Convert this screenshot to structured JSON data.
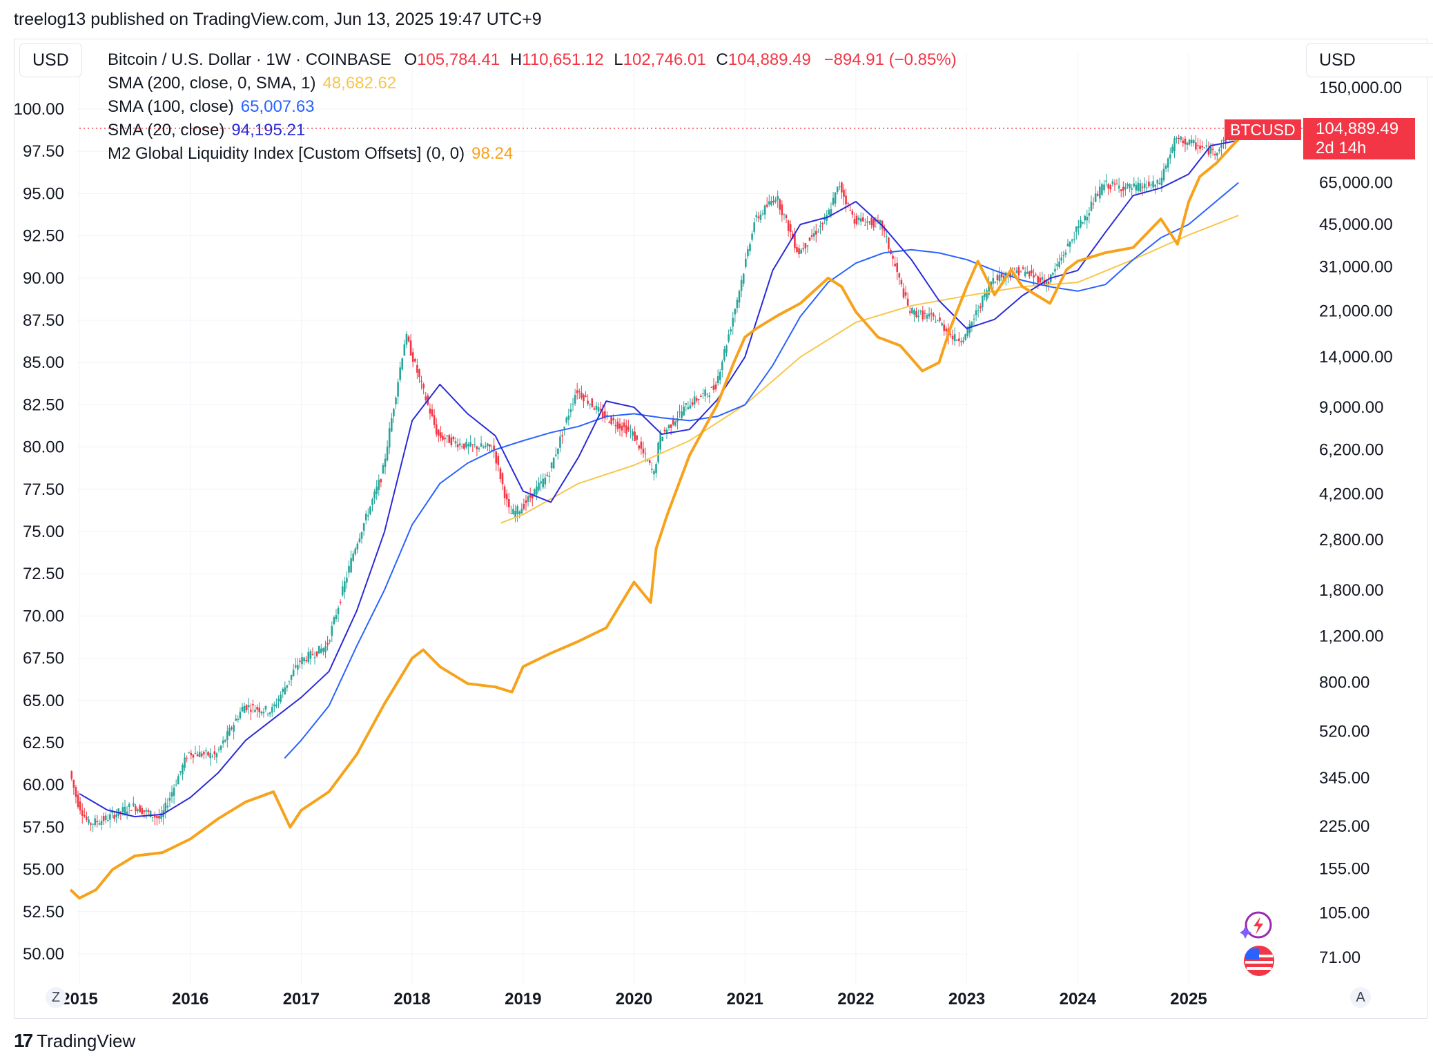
{
  "header": {
    "published": "treelog13 published on TradingView.com, Jun 13, 2025 19:47 UTC+9"
  },
  "left_currency": "USD",
  "right_currency": "USD",
  "legend": {
    "symbol": "Bitcoin / U.S. Dollar · 1W · COINBASE",
    "o_label": "O",
    "o_value": "105,784.41",
    "h_label": "H",
    "h_value": "110,651.12",
    "l_label": "L",
    "l_value": "102,746.01",
    "c_label": "C",
    "c_value": "104,889.49",
    "change": "−894.91 (−0.85%)",
    "sma200_label": "SMA (200, close, 0, SMA, 1)",
    "sma200_value": "48,682.62",
    "sma100_label": "SMA (100, close)",
    "sma100_value": "65,007.63",
    "sma20_label": "SMA (20, close)",
    "sma20_value": "94,195.21",
    "m2_label": "M2 Global Liquidity Index [Custom Offsets] (0, 0)",
    "m2_value": "98.24"
  },
  "price_tag": {
    "symbol": "BTCUSD",
    "price": "104,889.49",
    "countdown": "2d 14h"
  },
  "corner_left": "Z",
  "corner_right": "A",
  "footer_logo": "TradingView",
  "colors": {
    "up": "#26a69a",
    "down": "#f23645",
    "m2": "#f7a21b",
    "sma200": "#f8c64a",
    "sma100": "#2962ff",
    "sma20": "#2a2ad9",
    "grid": "#f0f3fa"
  },
  "chart_data": {
    "type": "line",
    "title": "Bitcoin / U.S. Dollar · 1W · COINBASE",
    "left_axis": {
      "label": "USD",
      "ticks": [
        "50.00",
        "52.50",
        "55.00",
        "57.50",
        "60.00",
        "62.50",
        "65.00",
        "67.50",
        "70.00",
        "72.50",
        "75.00",
        "77.50",
        "80.00",
        "82.50",
        "85.00",
        "87.50",
        "90.00",
        "92.50",
        "95.00",
        "97.50",
        "100.00"
      ],
      "range": [
        49,
        101
      ]
    },
    "right_axis": {
      "label": "USD",
      "log_scale": true,
      "ticks": [
        "71.00",
        "105.00",
        "155.00",
        "225.00",
        "345.00",
        "520.00",
        "800.00",
        "1,200.00",
        "1,800.00",
        "2,800.00",
        "4,200.00",
        "6,200.00",
        "9,000.00",
        "14,000.00",
        "21,000.00",
        "31,000.00",
        "45,000.00",
        "65,000.00",
        "150,000.00"
      ]
    },
    "x_ticks": [
      "2015",
      "2016",
      "2017",
      "2018",
      "2019",
      "2020",
      "2021",
      "2022",
      "2023",
      "2024",
      "2025"
    ],
    "grid": true,
    "series": [
      {
        "name": "Bitcoin / U.S. Dollar",
        "axis": "right",
        "x": [
          2014.92,
          2015.0,
          2015.1,
          2015.25,
          2015.5,
          2015.75,
          2016.0,
          2016.25,
          2016.5,
          2016.75,
          2017.0,
          2017.25,
          2017.5,
          2017.75,
          2017.96,
          2018.1,
          2018.25,
          2018.5,
          2018.75,
          2018.9,
          2019.0,
          2019.25,
          2019.5,
          2019.75,
          2020.0,
          2020.2,
          2020.25,
          2020.5,
          2020.75,
          2020.9,
          2021.0,
          2021.1,
          2021.3,
          2021.5,
          2021.75,
          2021.87,
          2022.0,
          2022.25,
          2022.5,
          2022.75,
          2022.9,
          2023.0,
          2023.25,
          2023.5,
          2023.75,
          2024.0,
          2024.25,
          2024.5,
          2024.75,
          2024.9,
          2025.0,
          2025.25,
          2025.45
        ],
        "values": [
          380,
          280,
          230,
          240,
          270,
          240,
          430,
          420,
          650,
          620,
          960,
          1100,
          2600,
          5000,
          17000,
          11000,
          7000,
          6400,
          6300,
          3500,
          3700,
          5000,
          10500,
          8300,
          7200,
          5000,
          6900,
          9200,
          10700,
          19000,
          29000,
          46000,
          58000,
          35000,
          47000,
          64000,
          47000,
          45000,
          21000,
          19500,
          16500,
          16600,
          28000,
          30000,
          27000,
          42000,
          64000,
          62000,
          64000,
          95000,
          93000,
          85000,
          104889
        ]
      },
      {
        "name": "M2 Global Liquidity Index [Custom Offsets] (0, 0)",
        "axis": "left",
        "x": [
          2014.92,
          2015.0,
          2015.15,
          2015.3,
          2015.5,
          2015.75,
          2016.0,
          2016.25,
          2016.5,
          2016.75,
          2016.9,
          2017.0,
          2017.25,
          2017.5,
          2017.75,
          2018.0,
          2018.1,
          2018.25,
          2018.5,
          2018.75,
          2018.9,
          2019.0,
          2019.25,
          2019.5,
          2019.75,
          2020.0,
          2020.15,
          2020.2,
          2020.3,
          2020.5,
          2020.75,
          2020.9,
          2021.0,
          2021.1,
          2021.3,
          2021.5,
          2021.75,
          2021.87,
          2022.0,
          2022.2,
          2022.4,
          2022.6,
          2022.75,
          2022.85,
          2023.0,
          2023.1,
          2023.25,
          2023.4,
          2023.5,
          2023.75,
          2023.9,
          2024.0,
          2024.25,
          2024.5,
          2024.75,
          2024.9,
          2025.0,
          2025.1,
          2025.25,
          2025.45
        ],
        "values": [
          53.8,
          53.3,
          53.8,
          55.0,
          55.8,
          56.0,
          56.8,
          58.0,
          59.0,
          59.6,
          57.5,
          58.5,
          59.6,
          61.8,
          64.8,
          67.5,
          68.0,
          67.0,
          66.0,
          65.8,
          65.5,
          67.0,
          67.8,
          68.5,
          69.3,
          72.0,
          70.8,
          74.0,
          76.0,
          79.5,
          82.5,
          85.0,
          86.5,
          87.0,
          87.8,
          88.5,
          90.0,
          89.5,
          88.0,
          86.5,
          86.0,
          84.5,
          85.0,
          87.0,
          89.5,
          91.0,
          89.0,
          90.5,
          89.5,
          88.5,
          90.5,
          91.0,
          91.5,
          91.8,
          93.5,
          92.0,
          94.5,
          96.0,
          96.8,
          98.24
        ]
      },
      {
        "name": "SMA (200, close, 0, SMA, 1)",
        "axis": "right",
        "x": [
          2018.8,
          2019.0,
          2019.5,
          2020.0,
          2020.5,
          2021.0,
          2021.5,
          2022.0,
          2022.5,
          2023.0,
          2023.5,
          2024.0,
          2024.5,
          2025.0,
          2025.45
        ],
        "values": [
          3250,
          3500,
          4600,
          5400,
          6700,
          9200,
          14000,
          19000,
          22000,
          24000,
          26000,
          27000,
          33000,
          41000,
          48683
        ]
      },
      {
        "name": "SMA (100, close)",
        "axis": "right",
        "x": [
          2016.85,
          2017.0,
          2017.25,
          2017.5,
          2017.75,
          2018.0,
          2018.25,
          2018.5,
          2018.75,
          2019.0,
          2019.25,
          2019.5,
          2019.75,
          2020.0,
          2020.25,
          2020.5,
          2020.75,
          2021.0,
          2021.25,
          2021.5,
          2021.75,
          2022.0,
          2022.25,
          2022.5,
          2022.75,
          2023.0,
          2023.25,
          2023.5,
          2023.75,
          2024.0,
          2024.25,
          2024.5,
          2024.75,
          2025.0,
          2025.45
        ],
        "values": [
          410,
          480,
          650,
          1100,
          1800,
          3200,
          4600,
          5500,
          6200,
          6700,
          7200,
          7600,
          8300,
          8500,
          8200,
          8000,
          8300,
          9200,
          13000,
          20000,
          27000,
          32000,
          35000,
          36000,
          35000,
          33000,
          30000,
          27500,
          26000,
          25000,
          26500,
          33000,
          40000,
          45000,
          65008
        ]
      },
      {
        "name": "SMA (20, close)",
        "axis": "right",
        "x": [
          2015.0,
          2015.25,
          2015.5,
          2015.75,
          2016.0,
          2016.25,
          2016.5,
          2016.75,
          2017.0,
          2017.25,
          2017.5,
          2017.75,
          2018.0,
          2018.25,
          2018.5,
          2018.75,
          2019.0,
          2019.25,
          2019.5,
          2019.75,
          2020.0,
          2020.25,
          2020.5,
          2020.75,
          2021.0,
          2021.25,
          2021.5,
          2021.75,
          2022.0,
          2022.25,
          2022.5,
          2022.75,
          2023.0,
          2023.25,
          2023.5,
          2023.75,
          2024.0,
          2024.25,
          2024.5,
          2024.75,
          2025.0,
          2025.2,
          2025.45
        ],
        "values": [
          300,
          260,
          245,
          250,
          290,
          360,
          480,
          580,
          700,
          880,
          1500,
          3000,
          8000,
          11000,
          8500,
          7000,
          4300,
          3900,
          5800,
          9500,
          9000,
          7100,
          7400,
          9600,
          14000,
          30000,
          45000,
          48000,
          55000,
          44000,
          33000,
          23000,
          18000,
          19500,
          24000,
          28000,
          30000,
          42000,
          58000,
          62000,
          70000,
          90000,
          94195
        ]
      }
    ]
  }
}
